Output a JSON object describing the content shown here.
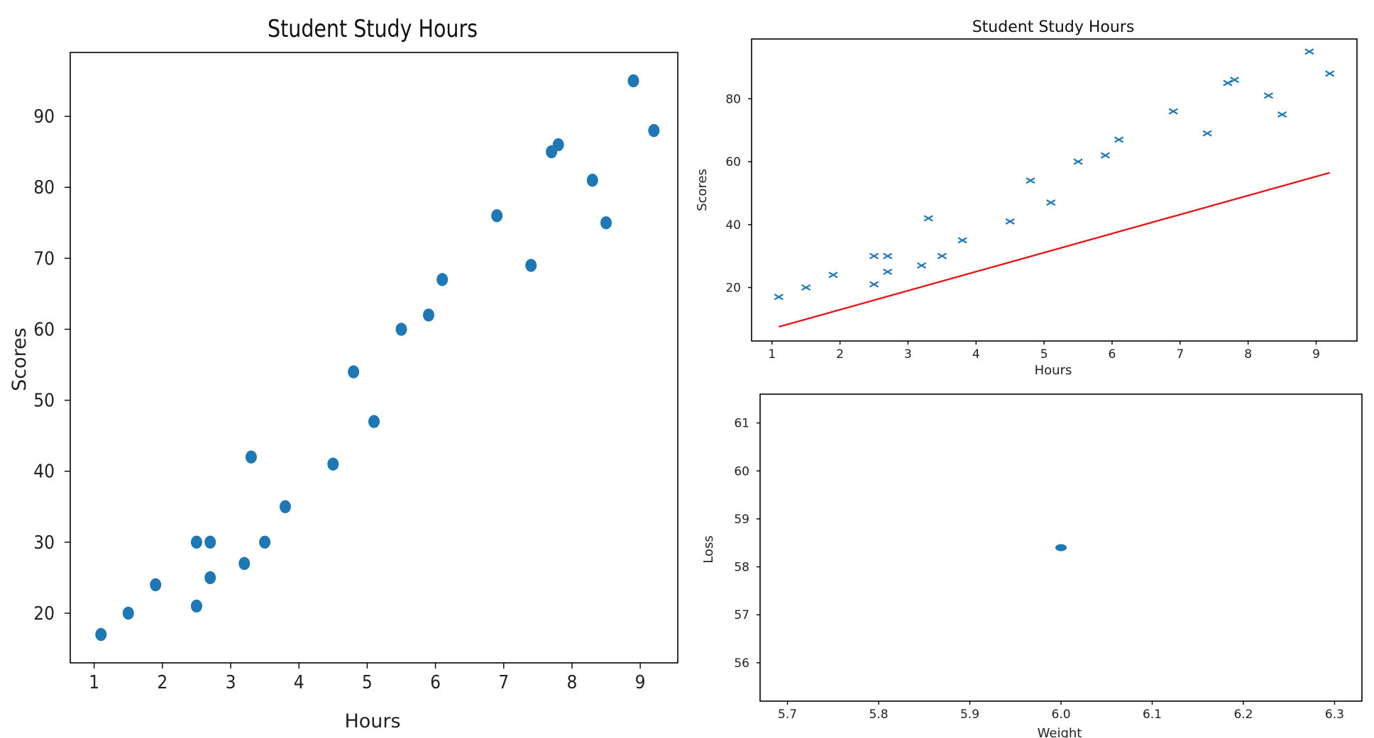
{
  "chart_data": [
    {
      "type": "scatter",
      "title": "Student Study Hours",
      "xlabel": "Hours",
      "ylabel": "Scores",
      "xlim": [
        0.65,
        9.55
      ],
      "ylim": [
        13.0,
        99.0
      ],
      "xticks": [
        1,
        2,
        3,
        4,
        5,
        6,
        7,
        8,
        9
      ],
      "yticks": [
        20,
        30,
        40,
        50,
        60,
        70,
        80,
        90
      ],
      "marker": "circle",
      "color": "#1f77b4",
      "grid": false,
      "points": [
        [
          2.5,
          21
        ],
        [
          5.1,
          47
        ],
        [
          3.2,
          27
        ],
        [
          8.5,
          75
        ],
        [
          3.5,
          30
        ],
        [
          1.5,
          20
        ],
        [
          9.2,
          88
        ],
        [
          5.5,
          60
        ],
        [
          8.3,
          81
        ],
        [
          2.7,
          25
        ],
        [
          7.7,
          85
        ],
        [
          5.9,
          62
        ],
        [
          4.5,
          41
        ],
        [
          3.3,
          42
        ],
        [
          1.1,
          17
        ],
        [
          8.9,
          95
        ],
        [
          2.5,
          30
        ],
        [
          1.9,
          24
        ],
        [
          6.1,
          67
        ],
        [
          7.4,
          69
        ],
        [
          2.7,
          30
        ],
        [
          4.8,
          54
        ],
        [
          3.8,
          35
        ],
        [
          6.9,
          76
        ],
        [
          7.8,
          86
        ]
      ]
    },
    {
      "type": "scatter",
      "title": "Student Study Hours",
      "xlabel": "Hours",
      "ylabel": "Scores",
      "xlim": [
        0.7,
        9.6
      ],
      "ylim": [
        3.0,
        99.0
      ],
      "xticks": [
        1,
        2,
        3,
        4,
        5,
        6,
        7,
        8,
        9
      ],
      "yticks": [
        20,
        40,
        60,
        80
      ],
      "marker": "x",
      "color": "#1f77b4",
      "grid": false,
      "points": [
        [
          2.5,
          21
        ],
        [
          5.1,
          47
        ],
        [
          3.2,
          27
        ],
        [
          8.5,
          75
        ],
        [
          3.5,
          30
        ],
        [
          1.5,
          20
        ],
        [
          9.2,
          88
        ],
        [
          5.5,
          60
        ],
        [
          8.3,
          81
        ],
        [
          2.7,
          25
        ],
        [
          7.7,
          85
        ],
        [
          5.9,
          62
        ],
        [
          4.5,
          41
        ],
        [
          3.3,
          42
        ],
        [
          1.1,
          17
        ],
        [
          8.9,
          95
        ],
        [
          2.5,
          30
        ],
        [
          1.9,
          24
        ],
        [
          6.1,
          67
        ],
        [
          7.4,
          69
        ],
        [
          2.7,
          30
        ],
        [
          4.8,
          54
        ],
        [
          3.8,
          35
        ],
        [
          6.9,
          76
        ],
        [
          7.8,
          86
        ]
      ],
      "line": {
        "color": "#e31a1c",
        "x": [
          1.1,
          9.2
        ],
        "y": [
          7.5,
          56.5
        ]
      }
    },
    {
      "type": "scatter",
      "title": "",
      "xlabel": "Weight",
      "ylabel": "Loss",
      "xlim": [
        5.67,
        6.33
      ],
      "ylim": [
        55.2,
        61.6
      ],
      "xticks": [
        5.7,
        5.8,
        5.9,
        6.0,
        6.1,
        6.2,
        6.3
      ],
      "yticks": [
        56,
        57,
        58,
        59,
        60,
        61
      ],
      "marker": "circle",
      "color": "#1f77b4",
      "grid": false,
      "points": [
        [
          6.0,
          58.4
        ]
      ]
    }
  ]
}
